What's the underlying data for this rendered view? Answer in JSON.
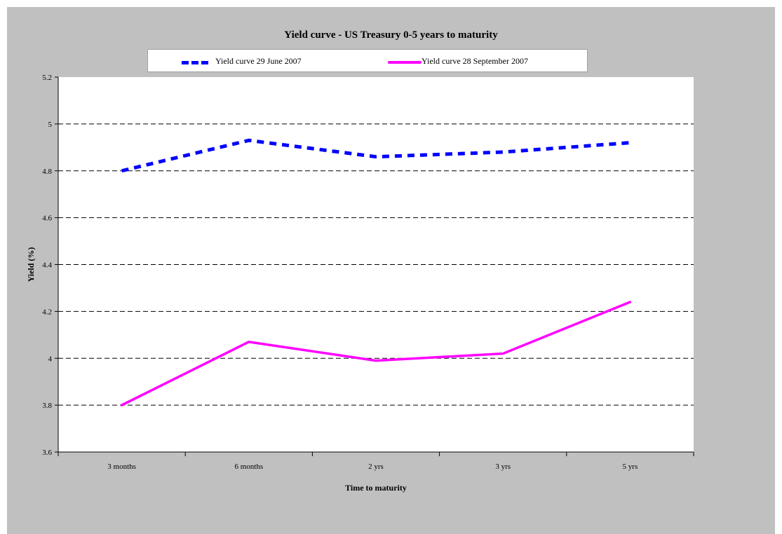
{
  "chart_data": {
    "type": "line",
    "title": "Yield curve - US Treasury 0-5 years to maturity",
    "xlabel": "Time to maturity",
    "ylabel": "Yield (%)",
    "categories": [
      "3 months",
      "6 months",
      "2 yrs",
      "3 yrs",
      "5 yrs"
    ],
    "ylim": [
      3.6,
      5.2
    ],
    "yticks": [
      "3.6",
      "3.8",
      "4",
      "4.2",
      "4.4",
      "4.6",
      "4.8",
      "5",
      "5.2"
    ],
    "grid": "horizontal dashed",
    "legend_position": "top",
    "series": [
      {
        "name": "Yield curve 29 June 2007",
        "values": [
          4.8,
          4.93,
          4.86,
          4.88,
          4.92
        ],
        "color": "#0000ff",
        "style": "dotted"
      },
      {
        "name": "Yield curve 28 September 2007",
        "values": [
          3.8,
          4.07,
          3.99,
          4.02,
          4.24
        ],
        "color": "#ff00ff",
        "style": "solid"
      }
    ]
  },
  "colors": {
    "background": "#c0c0c0",
    "plot_area": "#ffffff"
  }
}
